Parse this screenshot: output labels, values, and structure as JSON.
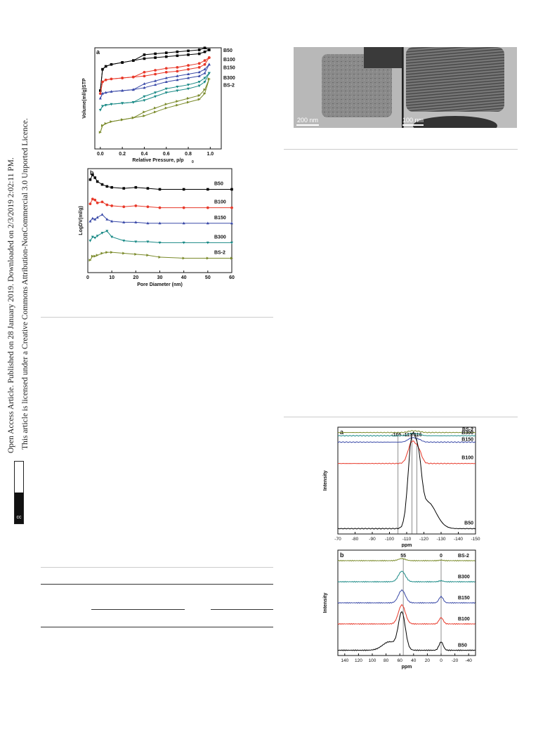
{
  "sidebar": {
    "line1": "Open Access Article. Published on 28 January 2019. Downloaded on 2/3/2019 2:02:11 PM.",
    "line2": "This article is licensed under a Creative Commons Attribution-NonCommercial 3.0 Unported Licence.",
    "badge": "cc BY-NC"
  },
  "tem_figure": {
    "scale_left": "200 nm",
    "scale_right": "100 nm"
  },
  "chart_data": [
    {
      "panel": "a",
      "type": "line",
      "xlabel": "Relative Pressure, p/p",
      "xlabel_sub": "0",
      "ylabel": "Volume(ml/g)STP",
      "xlim": [
        -0.05,
        1.1
      ],
      "xticks": [
        "0.0",
        "0.2",
        "0.4",
        "0.6",
        "0.8",
        "1.0"
      ],
      "series": [
        {
          "name": "B50",
          "color": "#000000",
          "x": [
            0.0,
            0.02,
            0.05,
            0.1,
            0.2,
            0.3,
            0.4,
            0.5,
            0.6,
            0.7,
            0.8,
            0.9,
            0.95,
            0.99
          ],
          "y": [
            0.58,
            0.8,
            0.83,
            0.85,
            0.87,
            0.89,
            0.91,
            0.92,
            0.93,
            0.94,
            0.95,
            0.96,
            0.98,
            1.0
          ]
        },
        {
          "name": "B100",
          "color": "#e8392a",
          "x": [
            0.0,
            0.02,
            0.05,
            0.1,
            0.2,
            0.3,
            0.4,
            0.5,
            0.6,
            0.7,
            0.8,
            0.9,
            0.95,
            0.99
          ],
          "y": [
            0.55,
            0.67,
            0.69,
            0.7,
            0.71,
            0.72,
            0.73,
            0.75,
            0.77,
            0.78,
            0.8,
            0.82,
            0.85,
            0.92
          ]
        },
        {
          "name": "B150",
          "color": "#3a4aa8",
          "x": [
            0.0,
            0.02,
            0.05,
            0.1,
            0.2,
            0.3,
            0.4,
            0.5,
            0.6,
            0.7,
            0.8,
            0.9,
            0.95,
            0.99
          ],
          "y": [
            0.5,
            0.55,
            0.56,
            0.57,
            0.58,
            0.59,
            0.61,
            0.64,
            0.67,
            0.69,
            0.71,
            0.73,
            0.76,
            0.85
          ]
        },
        {
          "name": "B300",
          "color": "#1a8a86",
          "x": [
            0.0,
            0.02,
            0.05,
            0.1,
            0.2,
            0.3,
            0.4,
            0.5,
            0.6,
            0.7,
            0.8,
            0.9,
            0.95,
            0.99
          ],
          "y": [
            0.38,
            0.42,
            0.43,
            0.44,
            0.45,
            0.46,
            0.48,
            0.52,
            0.56,
            0.58,
            0.6,
            0.63,
            0.67,
            0.76
          ]
        },
        {
          "name": "BS-2",
          "color": "#7a8a2a",
          "x": [
            0.0,
            0.02,
            0.05,
            0.1,
            0.2,
            0.3,
            0.4,
            0.5,
            0.6,
            0.7,
            0.8,
            0.9,
            0.95,
            0.99
          ],
          "y": [
            0.15,
            0.22,
            0.24,
            0.26,
            0.28,
            0.3,
            0.32,
            0.36,
            0.4,
            0.43,
            0.46,
            0.49,
            0.55,
            0.7
          ]
        }
      ]
    },
    {
      "panel": "b",
      "type": "line",
      "xlabel": "Pore Diameter (nm)",
      "ylabel": "LogDV(ml/g)",
      "xlim": [
        0,
        60
      ],
      "xticks": [
        "0",
        "10",
        "20",
        "30",
        "40",
        "50",
        "60"
      ],
      "series": [
        {
          "name": "B50",
          "color": "#000000",
          "x": [
            1,
            2,
            3,
            4,
            6,
            8,
            10,
            15,
            20,
            25,
            30,
            40,
            50,
            60
          ],
          "y": [
            0.93,
            0.98,
            0.95,
            0.91,
            0.88,
            0.86,
            0.85,
            0.84,
            0.85,
            0.84,
            0.83,
            0.83,
            0.83,
            0.83
          ]
        },
        {
          "name": "B100",
          "color": "#e8392a",
          "x": [
            1,
            2,
            3,
            4,
            6,
            8,
            10,
            15,
            20,
            25,
            30,
            40,
            50,
            60
          ],
          "y": [
            0.68,
            0.73,
            0.72,
            0.69,
            0.7,
            0.67,
            0.66,
            0.65,
            0.66,
            0.65,
            0.64,
            0.64,
            0.64,
            0.64
          ]
        },
        {
          "name": "B150",
          "color": "#3a4aa8",
          "x": [
            1,
            2,
            3,
            4,
            6,
            8,
            10,
            15,
            20,
            25,
            30,
            40,
            50,
            60
          ],
          "y": [
            0.5,
            0.53,
            0.52,
            0.54,
            0.57,
            0.52,
            0.5,
            0.49,
            0.49,
            0.48,
            0.48,
            0.48,
            0.48,
            0.48
          ]
        },
        {
          "name": "B300",
          "color": "#1a8a86",
          "x": [
            1,
            2,
            3,
            4,
            6,
            8,
            10,
            15,
            20,
            25,
            30,
            40,
            50,
            60
          ],
          "y": [
            0.3,
            0.34,
            0.33,
            0.35,
            0.38,
            0.4,
            0.34,
            0.3,
            0.29,
            0.29,
            0.28,
            0.28,
            0.28,
            0.28
          ]
        },
        {
          "name": "BS-2",
          "color": "#7a8a2a",
          "x": [
            1,
            2,
            3,
            4,
            6,
            8,
            10,
            15,
            20,
            25,
            30,
            40,
            50,
            60
          ],
          "y": [
            0.1,
            0.14,
            0.14,
            0.15,
            0.17,
            0.18,
            0.18,
            0.17,
            0.16,
            0.15,
            0.13,
            0.12,
            0.12,
            0.12
          ]
        }
      ]
    },
    {
      "panel": "a",
      "type": "line",
      "xlabel": "ppm",
      "ylabel": "Intensity",
      "xlim": [
        -70,
        -150
      ],
      "xticks": [
        "-70",
        "-80",
        "-90",
        "-100",
        "-110",
        "-120",
        "-130",
        "-140",
        "-150"
      ],
      "annotation": "-105 -113-116",
      "reference_lines": [
        -105,
        -113,
        -116
      ],
      "series": [
        {
          "name": "BS-2",
          "color": "#7a8a2a",
          "offset": 0.95,
          "peak": -113,
          "amp": 0.015
        },
        {
          "name": "B300",
          "color": "#1a8a86",
          "offset": 0.92,
          "peak": -113,
          "amp": 0.02
        },
        {
          "name": "B150",
          "color": "#3a4aa8",
          "offset": 0.86,
          "peak": -113,
          "amp": 0.04
        },
        {
          "name": "B100",
          "color": "#e8392a",
          "offset": 0.66,
          "peak": -113,
          "amp": 0.2
        },
        {
          "name": "B50",
          "color": "#000000",
          "offset": 0.05,
          "peak": -113,
          "amp": 0.8
        }
      ]
    },
    {
      "panel": "b",
      "type": "line",
      "xlabel": "ppm",
      "ylabel": "Intensity",
      "xlim": [
        150,
        -50
      ],
      "xticks": [
        "140",
        "120",
        "100",
        "80",
        "60",
        "40",
        "20",
        "0",
        "-20",
        "-40"
      ],
      "reference_lines": [
        55,
        0
      ],
      "reference_labels": [
        "55",
        "0"
      ],
      "series": [
        {
          "name": "BS-2",
          "color": "#7a8a2a",
          "offset": 0.9,
          "amp55": 0.02,
          "amp0": 0.005
        },
        {
          "name": "B300",
          "color": "#1a8a86",
          "offset": 0.7,
          "amp55": 0.1,
          "amp0": 0.01
        },
        {
          "name": "B150",
          "color": "#3a4aa8",
          "offset": 0.5,
          "amp55": 0.12,
          "amp0": 0.06
        },
        {
          "name": "B100",
          "color": "#e8392a",
          "offset": 0.3,
          "amp55": 0.18,
          "amp0": 0.06
        },
        {
          "name": "B50",
          "color": "#000000",
          "offset": 0.05,
          "amp55": 0.35,
          "amp0": 0.08
        }
      ]
    }
  ]
}
